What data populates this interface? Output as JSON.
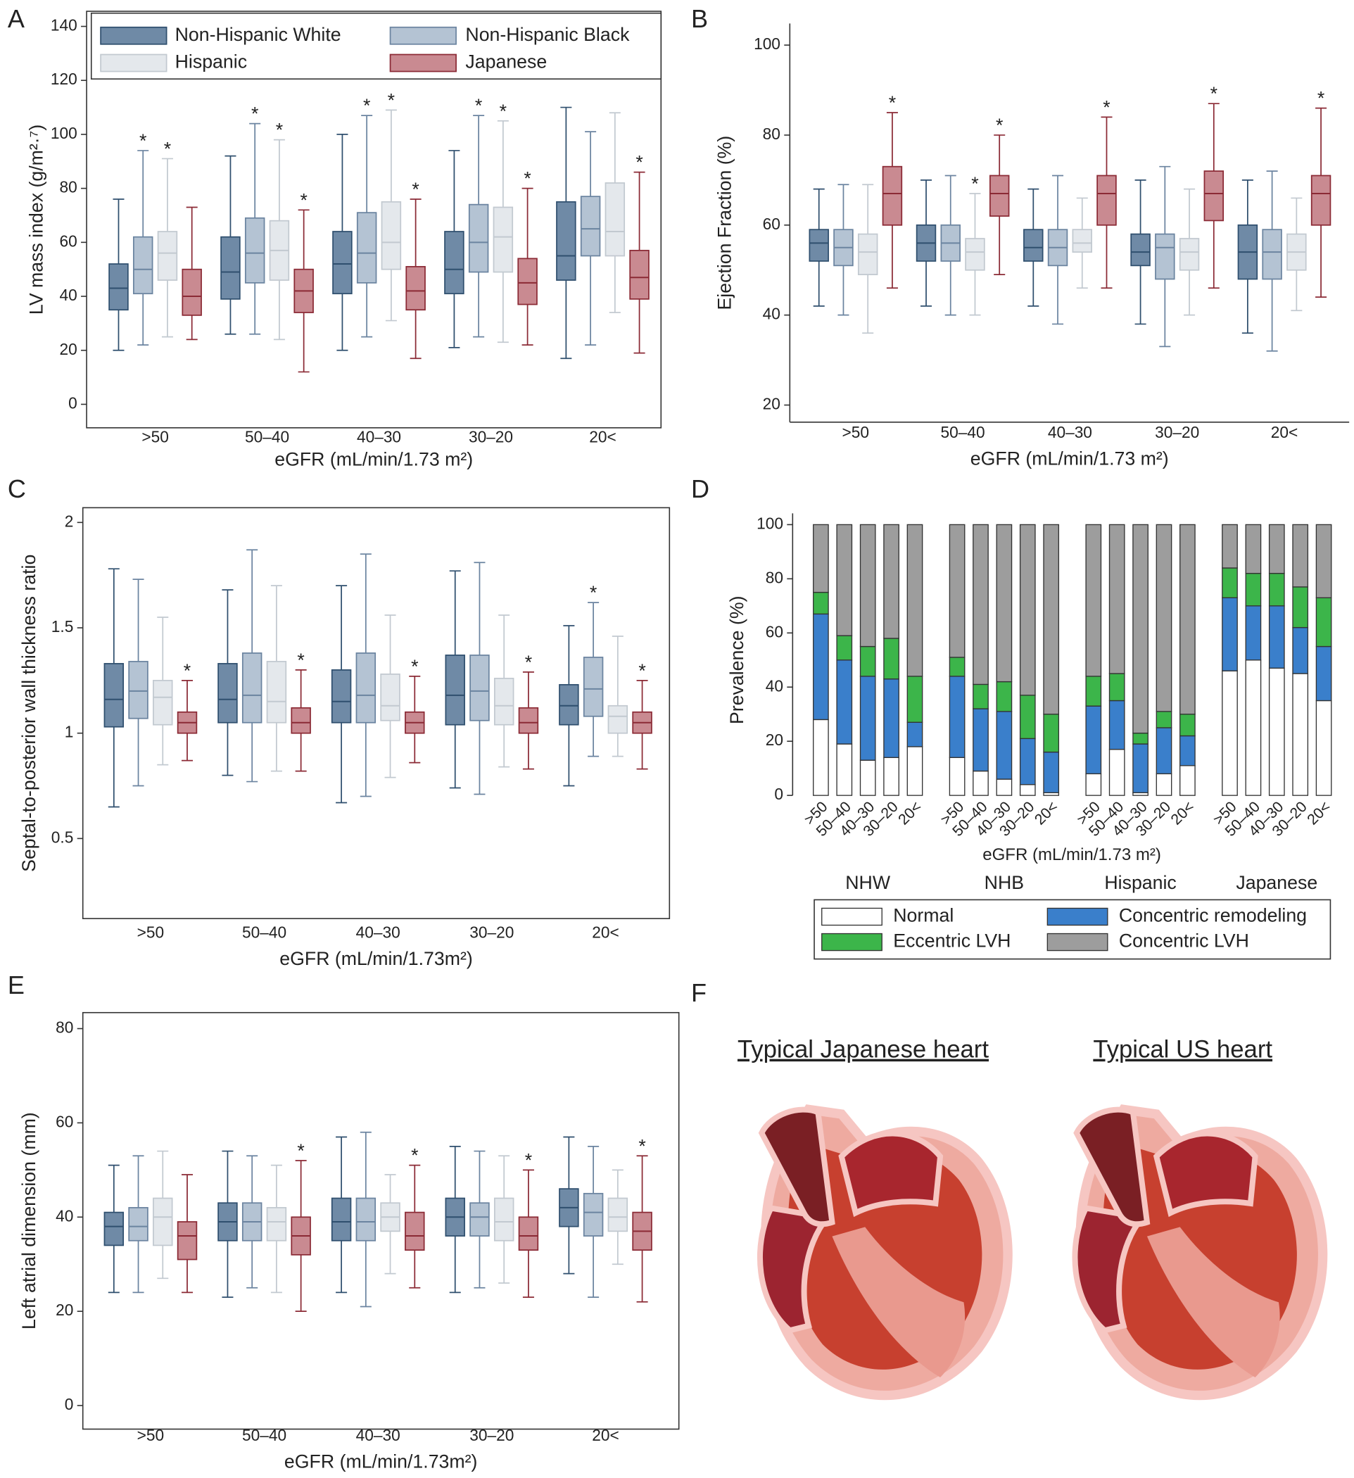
{
  "chart_data": [
    {
      "type": "box",
      "panel": "A",
      "ylabel": "LV mass index (g/m²·⁷)",
      "xlabel": "eGFR (mL/min/1.73 m²)",
      "categories": [
        ">50",
        "50–40",
        "40–30",
        "30–20",
        "20<"
      ],
      "ylim": [
        -8.7,
        145.6
      ],
      "yticks": [
        0,
        20,
        40,
        60,
        80,
        100,
        120,
        140
      ],
      "legend": true,
      "series": [
        {
          "name": "Non-Hispanic White",
          "color": "#6f8aa6",
          "edge": "#2f4f6e",
          "min": [
            20,
            26,
            20,
            21,
            17
          ],
          "q1": [
            35,
            39,
            41,
            41,
            46
          ],
          "median": [
            43,
            49,
            52,
            50,
            55
          ],
          "q3": [
            52,
            62,
            64,
            64,
            75
          ],
          "max": [
            76,
            92,
            100,
            94,
            110
          ]
        },
        {
          "name": "Non-Hispanic Black",
          "color": "#b4c3d3",
          "edge": "#6b84a0",
          "min": [
            22,
            26,
            25,
            25,
            22
          ],
          "q1": [
            41,
            45,
            45,
            49,
            55
          ],
          "median": [
            50,
            56,
            56,
            60,
            65
          ],
          "q3": [
            62,
            69,
            71,
            74,
            77
          ],
          "max": [
            94,
            104,
            107,
            107,
            101
          ],
          "flags": [
            "*",
            "*",
            "*",
            "*",
            null
          ]
        },
        {
          "name": "Hispanic",
          "color": "#e4e8ec",
          "edge": "#c2c9d0",
          "min": [
            25,
            24,
            31,
            23,
            34
          ],
          "q1": [
            46,
            46,
            50,
            49,
            55
          ],
          "median": [
            56,
            57,
            60,
            62,
            64
          ],
          "q3": [
            64,
            68,
            75,
            73,
            82
          ],
          "max": [
            91,
            98,
            109,
            105,
            108
          ],
          "flags": [
            "*",
            "*",
            "*",
            "*",
            null
          ]
        },
        {
          "name": "Japanese",
          "color": "#c98a91",
          "edge": "#8b2a35",
          "min": [
            24,
            12,
            17,
            22,
            19
          ],
          "q1": [
            33,
            34,
            35,
            37,
            39
          ],
          "median": [
            40,
            42,
            42,
            45,
            47
          ],
          "q3": [
            50,
            50,
            51,
            54,
            57
          ],
          "max": [
            73,
            72,
            76,
            80,
            86
          ],
          "flags": [
            null,
            "*",
            "*",
            "*",
            "*"
          ]
        }
      ]
    },
    {
      "type": "box",
      "panel": "B",
      "ylabel": "Ejection Fraction (%)",
      "xlabel": "eGFR (mL/min/1.73 m²)",
      "categories": [
        ">50",
        "50–40",
        "40–30",
        "30–20",
        "20<"
      ],
      "ylim": [
        16.2,
        104.8
      ],
      "yticks": [
        20,
        40,
        60,
        80,
        100
      ],
      "series": [
        {
          "color": "#6f8aa6",
          "edge": "#2f4f6e",
          "min": [
            42,
            42,
            42,
            38,
            36
          ],
          "q1": [
            52,
            52,
            52,
            51,
            48
          ],
          "median": [
            56,
            56,
            55,
            54,
            54
          ],
          "q3": [
            59,
            60,
            59,
            58,
            60
          ],
          "max": [
            68,
            70,
            68,
            70,
            70
          ]
        },
        {
          "color": "#b4c3d3",
          "edge": "#6b84a0",
          "min": [
            40,
            40,
            38,
            33,
            32
          ],
          "q1": [
            51,
            52,
            51,
            48,
            48
          ],
          "median": [
            55,
            56,
            55,
            55,
            54
          ],
          "q3": [
            59,
            60,
            59,
            58,
            59
          ],
          "max": [
            69,
            71,
            71,
            73,
            72
          ]
        },
        {
          "color": "#e4e8ec",
          "edge": "#c2c9d0",
          "min": [
            36,
            40,
            46,
            40,
            41
          ],
          "q1": [
            49,
            50,
            54,
            50,
            50
          ],
          "median": [
            54,
            54,
            56,
            54,
            54
          ],
          "q3": [
            58,
            57,
            59,
            57,
            58
          ],
          "max": [
            69,
            67,
            66,
            68,
            66
          ],
          "flags": [
            null,
            "*",
            null,
            null,
            null
          ]
        },
        {
          "color": "#c98a91",
          "edge": "#8b2a35",
          "min": [
            46,
            49,
            46,
            46,
            44
          ],
          "q1": [
            60,
            62,
            60,
            61,
            60
          ],
          "median": [
            67,
            67,
            67,
            67,
            67
          ],
          "q3": [
            73,
            71,
            71,
            72,
            71
          ],
          "max": [
            85,
            80,
            84,
            87,
            86
          ],
          "flags": [
            "*",
            "*",
            "*",
            "*",
            "*"
          ]
        }
      ]
    },
    {
      "type": "box",
      "panel": "C",
      "ylabel": "Septal-to-posterior wall thickness ratio",
      "xlabel": "eGFR (mL/min/1.73m²)",
      "categories": [
        ">50",
        "50–40",
        "40–30",
        "30–20",
        "20<"
      ],
      "ylim": [
        0.12,
        2.07
      ],
      "yticks": [
        0.5,
        1,
        1.5,
        2
      ],
      "series": [
        {
          "color": "#6f8aa6",
          "edge": "#2f4f6e",
          "min": [
            0.65,
            0.8,
            0.67,
            0.74,
            0.75
          ],
          "q1": [
            1.03,
            1.05,
            1.05,
            1.04,
            1.04
          ],
          "median": [
            1.16,
            1.16,
            1.15,
            1.18,
            1.13
          ],
          "q3": [
            1.33,
            1.33,
            1.3,
            1.37,
            1.23
          ],
          "max": [
            1.78,
            1.68,
            1.7,
            1.77,
            1.51
          ]
        },
        {
          "color": "#b4c3d3",
          "edge": "#6b84a0",
          "min": [
            0.75,
            0.77,
            0.7,
            0.71,
            0.89
          ],
          "q1": [
            1.07,
            1.05,
            1.05,
            1.06,
            1.08
          ],
          "median": [
            1.2,
            1.18,
            1.18,
            1.2,
            1.21
          ],
          "q3": [
            1.34,
            1.38,
            1.38,
            1.37,
            1.36
          ],
          "max": [
            1.73,
            1.87,
            1.85,
            1.81,
            1.62
          ],
          "flags": [
            null,
            null,
            null,
            null,
            "*"
          ]
        },
        {
          "color": "#e4e8ec",
          "edge": "#c2c9d0",
          "min": [
            0.85,
            0.82,
            0.79,
            0.84,
            0.89
          ],
          "q1": [
            1.04,
            1.05,
            1.06,
            1.04,
            1.0
          ],
          "median": [
            1.17,
            1.15,
            1.13,
            1.13,
            1.08
          ],
          "q3": [
            1.25,
            1.34,
            1.28,
            1.26,
            1.13
          ],
          "max": [
            1.55,
            1.7,
            1.56,
            1.56,
            1.46
          ]
        },
        {
          "color": "#c98a91",
          "edge": "#8b2a35",
          "min": [
            0.87,
            0.82,
            0.86,
            0.83,
            0.83
          ],
          "q1": [
            1,
            1,
            1,
            1,
            1
          ],
          "median": [
            1.05,
            1.05,
            1.05,
            1.05,
            1.05
          ],
          "q3": [
            1.1,
            1.12,
            1.1,
            1.12,
            1.1
          ],
          "max": [
            1.25,
            1.3,
            1.27,
            1.29,
            1.25
          ],
          "flags": [
            "*",
            "*",
            "*",
            "*",
            "*"
          ]
        }
      ]
    },
    {
      "type": "stacked-bar",
      "panel": "D",
      "ylabel": "Prevalence (%)",
      "xlabel": "eGFR (mL/min/1.73 m²)",
      "categories": [
        ">50",
        "50–40",
        "40–30",
        "30–20",
        "20<",
        ">50",
        "50–40",
        "40–30",
        "30–20",
        "20<",
        ">50",
        "50–40",
        "40–30",
        "30–20",
        "20<",
        ">50",
        "50–40",
        "40–30",
        "30–20",
        "20<"
      ],
      "groups": [
        "NHW",
        "NHB",
        "Hispanic",
        "Japanese"
      ],
      "ylim": [
        0,
        100
      ],
      "yticks": [
        0,
        20,
        40,
        60,
        80,
        100
      ],
      "legend": true,
      "series": [
        {
          "name": "Normal",
          "color": "#ffffff",
          "values": [
            28,
            19,
            13,
            14,
            18,
            14,
            9,
            6,
            4,
            1,
            8,
            17,
            1,
            8,
            11,
            46,
            50,
            47,
            45,
            35
          ]
        },
        {
          "name": "Concentric remodeling",
          "color": "#3a7fcb",
          "values": [
            39,
            31,
            31,
            29,
            9,
            30,
            23,
            25,
            17,
            15,
            25,
            18,
            18,
            17,
            11,
            27,
            20,
            23,
            17,
            20
          ]
        },
        {
          "name": "Eccentric LVH",
          "color": "#3cb54a",
          "values": [
            8,
            9,
            11,
            15,
            17,
            7,
            9,
            11,
            16,
            14,
            11,
            10,
            4,
            6,
            8,
            11,
            12,
            12,
            15,
            18
          ]
        },
        {
          "name": "Concentric LVH",
          "color": "#9d9d9d",
          "values": [
            25,
            41,
            45,
            42,
            56,
            49,
            59,
            58,
            63,
            70,
            56,
            55,
            77,
            69,
            70,
            16,
            18,
            18,
            23,
            27
          ]
        }
      ]
    },
    {
      "type": "box",
      "panel": "E",
      "ylabel": "Left atrial dimension (mm)",
      "xlabel": "eGFR (mL/min/1.73m²)",
      "categories": [
        ">50",
        "50–40",
        "40–30",
        "30–20",
        "20<"
      ],
      "ylim": [
        -5,
        83.4
      ],
      "yticks": [
        0,
        20,
        40,
        60,
        80
      ],
      "series": [
        {
          "color": "#6f8aa6",
          "edge": "#2f4f6e",
          "min": [
            24,
            23,
            24,
            24,
            28
          ],
          "q1": [
            34,
            35,
            35,
            36,
            38
          ],
          "median": [
            38,
            39,
            39,
            40,
            42
          ],
          "q3": [
            41,
            43,
            44,
            44,
            46
          ],
          "max": [
            51,
            54,
            57,
            55,
            57
          ]
        },
        {
          "color": "#b4c3d3",
          "edge": "#6b84a0",
          "min": [
            24,
            25,
            21,
            25,
            23
          ],
          "q1": [
            35,
            35,
            35,
            36,
            36
          ],
          "median": [
            38,
            39,
            39,
            40,
            41
          ],
          "q3": [
            42,
            43,
            44,
            43,
            45
          ],
          "max": [
            53,
            53,
            58,
            54,
            55
          ]
        },
        {
          "color": "#e4e8ec",
          "edge": "#c2c9d0",
          "min": [
            27,
            24,
            28,
            26,
            30
          ],
          "q1": [
            34,
            35,
            37,
            35,
            37
          ],
          "median": [
            40,
            39,
            40,
            39,
            40
          ],
          "q3": [
            44,
            42,
            43,
            44,
            44
          ],
          "max": [
            54,
            51,
            49,
            53,
            50
          ]
        },
        {
          "color": "#c98a91",
          "edge": "#8b2a35",
          "min": [
            24,
            20,
            25,
            23,
            22
          ],
          "q1": [
            31,
            32,
            33,
            33,
            33
          ],
          "median": [
            36,
            36,
            36,
            36,
            37
          ],
          "q3": [
            39,
            40,
            41,
            40,
            41
          ],
          "max": [
            49,
            52,
            51,
            50,
            53
          ],
          "flags": [
            null,
            "*",
            "*",
            "*",
            "*"
          ]
        }
      ]
    }
  ],
  "illustration": {
    "panel": "F",
    "titles": [
      "Typical Japanese heart",
      "Typical US heart"
    ]
  }
}
